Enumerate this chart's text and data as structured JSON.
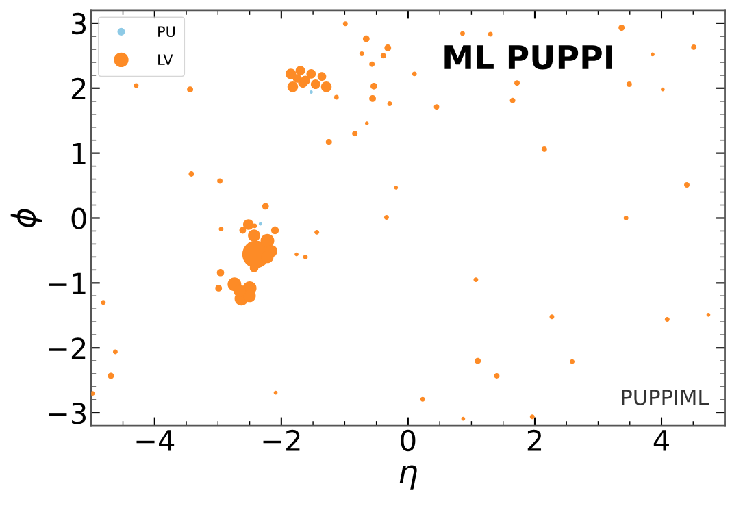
{
  "chart_data": {
    "type": "bubble",
    "xlabel": "η",
    "ylabel": "ϕ",
    "xlim": [
      -5,
      5
    ],
    "ylim": [
      -3.2,
      3.2
    ],
    "xticks": [
      {
        "value": -4,
        "label": "−4"
      },
      {
        "value": -2,
        "label": "−2"
      },
      0,
      2,
      4
    ],
    "yticks": [
      {
        "value": -3,
        "label": "−3"
      },
      {
        "value": -2,
        "label": "−2"
      },
      {
        "value": -1,
        "label": "−1"
      },
      0,
      1,
      2,
      3
    ],
    "grid": false,
    "legend": "top left",
    "marker": "circle",
    "annotations": [
      "ML PUPPI",
      "PUPPIML"
    ],
    "series": [
      {
        "name": "PU",
        "color": "#8ecae6",
        "x": [
          -1.53,
          -2.33
        ],
        "values": [
          1.94,
          -0.09
        ],
        "sizes": [
          0.015,
          0.015
        ]
      },
      {
        "name": "LV",
        "color": "#fd8b26",
        "x": [
          -0.99,
          -0.66,
          -0.73,
          -0.57,
          -0.54,
          -0.56,
          -4.29,
          -3.44,
          -1.85,
          -1.7,
          -1.53,
          -1.36,
          -1.82,
          -1.66,
          -1.46,
          -1.29,
          -1.62,
          -1.75,
          -1.13,
          -0.65,
          -0.84,
          -1.25,
          -3.42,
          -2.97,
          -2.25,
          -0.32,
          -0.39,
          -0.29,
          0.1,
          0.45,
          0.86,
          1.3,
          1.72,
          1.65,
          3.37,
          3.49,
          3.86,
          4.02,
          4.51,
          2.15,
          -0.19,
          4.4,
          -2.52,
          -2.42,
          -2.61,
          -2.1,
          -2.95,
          -1.44,
          -2.4,
          -2.22,
          -2.43,
          -2.16,
          -2.22,
          -2.43,
          -1.76,
          -1.62,
          -2.96,
          -2.99,
          -2.74,
          -2.5,
          -2.63,
          -2.5,
          -2.66,
          -4.81,
          -4.62,
          -4.69,
          -4.98,
          -2.09,
          -0.34,
          3.44,
          1.07,
          2.27,
          4.09,
          4.74,
          1.1,
          2.59,
          1.4,
          0.23,
          0.87,
          1.96
        ],
        "values": [
          2.99,
          2.76,
          2.53,
          2.37,
          2.03,
          1.84,
          2.04,
          1.98,
          2.22,
          2.27,
          2.22,
          2.18,
          2.02,
          2.08,
          2.06,
          2.02,
          2.12,
          2.15,
          1.86,
          1.46,
          1.3,
          1.17,
          0.68,
          0.57,
          0.18,
          2.62,
          2.5,
          1.76,
          2.22,
          1.71,
          2.84,
          2.83,
          2.08,
          1.81,
          2.93,
          2.06,
          2.52,
          1.98,
          2.63,
          1.06,
          0.47,
          0.51,
          -0.1,
          -0.12,
          -0.19,
          -0.19,
          -0.17,
          -0.22,
          -0.56,
          -0.35,
          -0.27,
          -0.51,
          -0.6,
          -0.77,
          -0.56,
          -0.6,
          -0.84,
          -1.08,
          -1.02,
          -1.08,
          -1.24,
          -1.2,
          -1.12,
          -1.3,
          -2.06,
          -2.43,
          -2.7,
          -2.69,
          0.01,
          0.0,
          -0.95,
          -1.52,
          -1.56,
          -1.49,
          -2.2,
          -2.21,
          -2.43,
          -2.79,
          -3.09,
          -3.06
        ],
        "sizes": [
          0.03,
          0.06,
          0.03,
          0.04,
          0.06,
          0.06,
          0.03,
          0.05,
          0.15,
          0.12,
          0.12,
          0.1,
          0.15,
          0.12,
          0.12,
          0.15,
          0.12,
          0.1,
          0.03,
          0.02,
          0.04,
          0.05,
          0.04,
          0.04,
          0.06,
          0.06,
          0.04,
          0.03,
          0.03,
          0.04,
          0.03,
          0.03,
          0.04,
          0.04,
          0.05,
          0.04,
          0.02,
          0.02,
          0.04,
          0.04,
          0.02,
          0.04,
          0.15,
          0.03,
          0.06,
          0.08,
          0.03,
          0.03,
          1,
          0.25,
          0.2,
          0.2,
          0.2,
          0.1,
          0.02,
          0.03,
          0.07,
          0.06,
          0.25,
          0.25,
          0.25,
          0.2,
          0.2,
          0.03,
          0.03,
          0.05,
          0.03,
          0.02,
          0.03,
          0.03,
          0.03,
          0.03,
          0.03,
          0.02,
          0.05,
          0.03,
          0.04,
          0.03,
          0.02,
          0.03
        ]
      }
    ]
  }
}
